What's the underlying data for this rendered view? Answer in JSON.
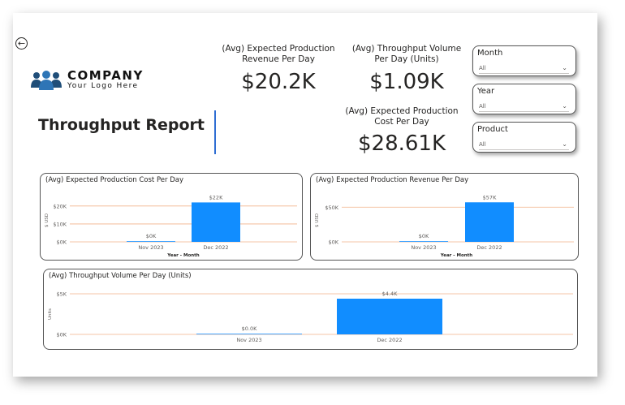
{
  "report": {
    "title": "Throughput Report",
    "logo": {
      "name": "COMPANY",
      "tagline": "Your Logo Here"
    }
  },
  "kpis": [
    {
      "label_line1": "(Avg) Expected Production",
      "label_line2": "Revenue Per Day",
      "value": "$20.2K"
    },
    {
      "label_line1": "(Avg) Throughput Volume",
      "label_line2": "Per Day (Units)",
      "value": "$1.09K"
    },
    {
      "label_line1": "(Avg) Expected Production",
      "label_line2": "Cost Per Day",
      "value": "$28.61K"
    }
  ],
  "slicers": [
    {
      "title": "Month",
      "selected": "All"
    },
    {
      "title": "Year",
      "selected": "All"
    },
    {
      "title": "Product",
      "selected": "All"
    }
  ],
  "colors": {
    "bar": "#118dff",
    "gridline": "#f2b28a",
    "divider": "#2f6ed3"
  },
  "chart_data": [
    {
      "type": "bar",
      "title": "(Avg) Expected Production Cost Per Day",
      "xlabel": "Year - Month",
      "ylabel": "$ USD",
      "categories": [
        "Nov 2023",
        "Dec 2022"
      ],
      "values": [
        0,
        22000
      ],
      "data_labels": [
        "$0K",
        "$22K"
      ],
      "yticks": [
        0,
        10000,
        20000
      ],
      "ytick_labels": [
        "$0K",
        "$10K",
        "$20K"
      ],
      "ylim": [
        0,
        24000
      ]
    },
    {
      "type": "bar",
      "title": "(Avg) Expected Production Revenue Per Day",
      "xlabel": "Year - Month",
      "ylabel": "$ USD",
      "categories": [
        "Nov 2023",
        "Dec 2022"
      ],
      "values": [
        0,
        57000
      ],
      "data_labels": [
        "$0K",
        "$57K"
      ],
      "yticks": [
        0,
        50000
      ],
      "ytick_labels": [
        "$0K",
        "$50K"
      ],
      "ylim": [
        0,
        62000
      ]
    },
    {
      "type": "bar",
      "title": "(Avg) Throughput Volume Per Day (Units)",
      "xlabel": "",
      "ylabel": "Units",
      "categories": [
        "Nov 2023",
        "Dec 2022"
      ],
      "values": [
        0,
        4400
      ],
      "data_labels": [
        "$0.0K",
        "$4.4K"
      ],
      "yticks": [
        0,
        5000
      ],
      "ytick_labels": [
        "$0K",
        "$5K"
      ],
      "ylim": [
        0,
        5000
      ]
    }
  ]
}
